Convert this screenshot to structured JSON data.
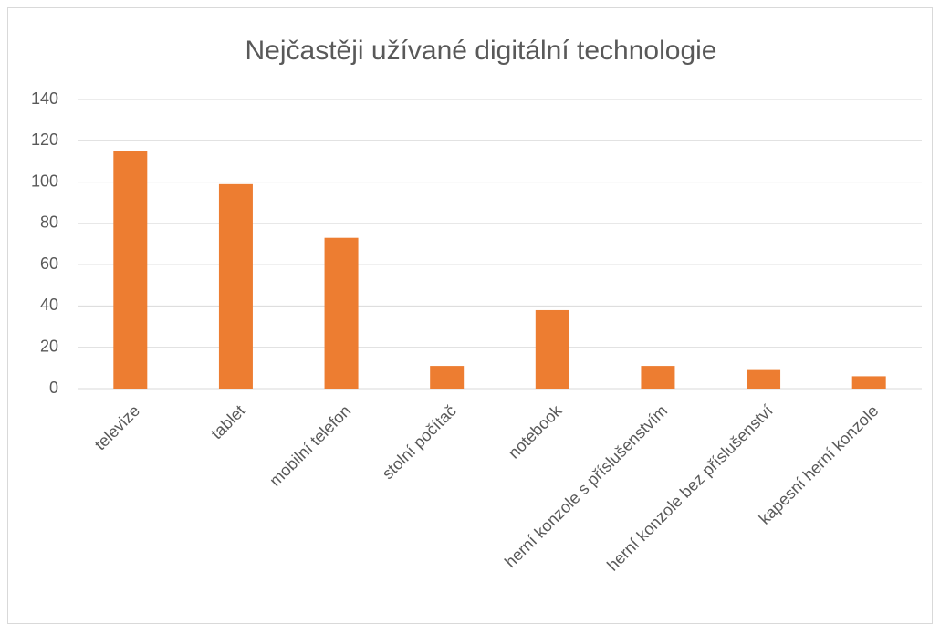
{
  "chart_data": {
    "type": "bar",
    "title": "Nejčastěji užívané digitální technologie",
    "categories": [
      "televize",
      "tablet",
      "mobilní telefon",
      "stolní počítač",
      "notebook",
      "herní konzole s příslušenstvím",
      "herní konzole bez příslušenství",
      "kapesní herní konzole"
    ],
    "values": [
      115,
      99,
      73,
      11,
      38,
      11,
      9,
      6
    ],
    "color": "#ed7d31",
    "ylim": [
      0,
      140
    ],
    "yticks": [
      0,
      20,
      40,
      60,
      80,
      100,
      120,
      140
    ],
    "grid": true
  }
}
